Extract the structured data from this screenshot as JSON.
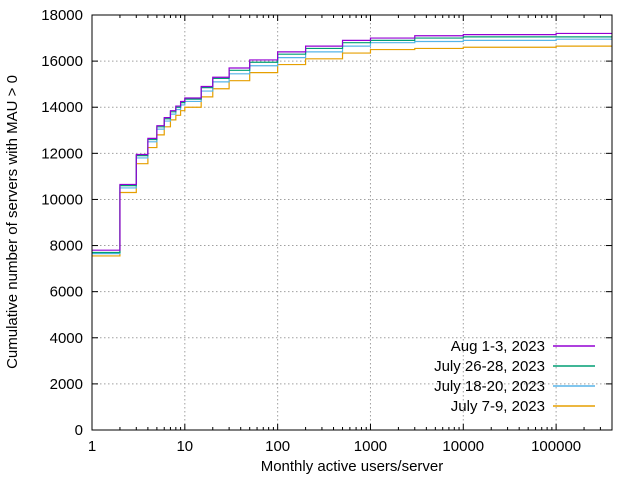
{
  "chart_data": {
    "type": "line",
    "step": true,
    "title": "",
    "xlabel": "Monthly active users/server",
    "ylabel": "Cumulative number of servers with MAU > 0",
    "x_scale": "log",
    "xlim": [
      1,
      400000
    ],
    "ylim": [
      0,
      18000
    ],
    "grid": true,
    "legend_position": "bottom-right",
    "x_ticks": [
      {
        "value": 1,
        "label": "1"
      },
      {
        "value": 10,
        "label": "10"
      },
      {
        "value": 100,
        "label": "100"
      },
      {
        "value": 1000,
        "label": "1000"
      },
      {
        "value": 10000,
        "label": "10000"
      },
      {
        "value": 100000,
        "label": "100000"
      }
    ],
    "y_ticks": [
      {
        "value": 0,
        "label": "0"
      },
      {
        "value": 2000,
        "label": "2000"
      },
      {
        "value": 4000,
        "label": "4000"
      },
      {
        "value": 6000,
        "label": "6000"
      },
      {
        "value": 8000,
        "label": "8000"
      },
      {
        "value": 10000,
        "label": "10000"
      },
      {
        "value": 12000,
        "label": "12000"
      },
      {
        "value": 14000,
        "label": "14000"
      },
      {
        "value": 16000,
        "label": "16000"
      },
      {
        "value": 18000,
        "label": "18000"
      }
    ],
    "x": [
      1,
      2,
      3,
      4,
      5,
      6,
      7,
      8,
      9,
      10,
      15,
      20,
      30,
      50,
      100,
      200,
      500,
      1000,
      3000,
      10000,
      100000,
      400000
    ],
    "series": [
      {
        "name": "Aug 1-3, 2023",
        "color": "#9400d3",
        "values": [
          7800,
          10650,
          11950,
          12650,
          13200,
          13550,
          13850,
          14050,
          14250,
          14400,
          14900,
          15300,
          15700,
          16050,
          16400,
          16650,
          16900,
          17000,
          17100,
          17150,
          17200,
          17200
        ]
      },
      {
        "name": "July 26-28, 2023",
        "color": "#009e73",
        "values": [
          7700,
          10600,
          11900,
          12600,
          13150,
          13500,
          13800,
          14000,
          14200,
          14350,
          14850,
          15250,
          15600,
          15950,
          16300,
          16550,
          16800,
          16900,
          17000,
          17050,
          17050,
          17050
        ]
      },
      {
        "name": "July 18-20, 2023",
        "color": "#56b4e9",
        "values": [
          7650,
          10500,
          11800,
          12500,
          13050,
          13400,
          13700,
          13900,
          14100,
          14250,
          14700,
          15100,
          15450,
          15800,
          16150,
          16400,
          16650,
          16800,
          16850,
          16900,
          16950,
          16950
        ]
      },
      {
        "name": "July 7-9, 2023",
        "color": "#e69f00",
        "values": [
          7550,
          10300,
          11550,
          12250,
          12800,
          13150,
          13450,
          13650,
          13850,
          14000,
          14450,
          14800,
          15150,
          15500,
          15850,
          16100,
          16350,
          16500,
          16550,
          16600,
          16650,
          16650
        ]
      }
    ]
  }
}
